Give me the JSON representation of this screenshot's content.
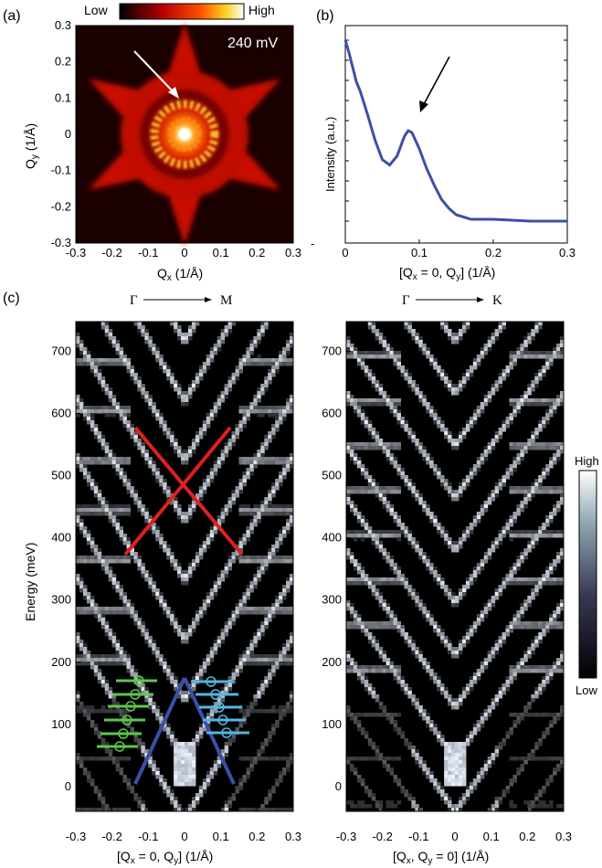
{
  "panel_a": {
    "label": "(a)",
    "colorbar_low": "Low",
    "colorbar_high": "High",
    "bias": "240 mV",
    "xlabel": "Qx (1/Å)",
    "ylabel": "Qy (1/Å)",
    "xticks": [
      "-0.3",
      "-0.2",
      "-0.1",
      "0",
      "0.1",
      "0.2",
      "0.3"
    ],
    "yticks": [
      "0.3",
      "0.2",
      "0.1",
      "0",
      "-0.1",
      "-0.2",
      "-0.3"
    ]
  },
  "panel_b": {
    "label": "(b)",
    "xlabel": "[Qx = 0, Qy] (1/Å)",
    "ylabel": "Intensity (a.u.)",
    "xticks": [
      "0",
      "0.1",
      "0.2",
      "0.3"
    ]
  },
  "panel_c": {
    "label": "(c)",
    "left_direction": {
      "from": "Γ",
      "to": "M"
    },
    "right_direction": {
      "from": "Γ",
      "to": "K"
    },
    "ylabel": "Energy (meV)",
    "yticks": [
      "700",
      "600",
      "500",
      "400",
      "300",
      "200",
      "100",
      "0"
    ],
    "xticks": [
      "-0.3",
      "-0.2",
      "-0.1",
      "0",
      "0.1",
      "0.2",
      "0.3"
    ],
    "left_xlabel": "[Qx = 0, Qy] (1/Å)",
    "right_xlabel": "[Qx, Qy = 0] (1/Å)",
    "colorbar_high": "High",
    "colorbar_low": "Low"
  },
  "chart_data": [
    {
      "type": "heatmap",
      "panel": "(a)",
      "xlabel": "Qx (1/Å)",
      "ylabel": "Qy (1/Å)",
      "xlim": [
        -0.3,
        0.3
      ],
      "ylim": [
        -0.3,
        0.3
      ],
      "annotation": "240 mV",
      "colorbar": {
        "low": "Low",
        "high": "High"
      }
    },
    {
      "type": "line",
      "panel": "(b)",
      "xlabel": "[Qx = 0, Qy] (1/Å)",
      "ylabel": "Intensity (a.u.)",
      "xlim": [
        0,
        0.3
      ],
      "x": [
        0,
        0.005,
        0.01,
        0.015,
        0.02,
        0.03,
        0.04,
        0.05,
        0.06,
        0.07,
        0.08,
        0.085,
        0.09,
        0.1,
        0.11,
        0.12,
        0.13,
        0.14,
        0.15,
        0.17,
        0.2,
        0.25,
        0.3
      ],
      "y": [
        1.0,
        0.93,
        0.85,
        0.77,
        0.72,
        0.59,
        0.45,
        0.34,
        0.31,
        0.36,
        0.47,
        0.5,
        0.49,
        0.4,
        0.29,
        0.2,
        0.12,
        0.07,
        0.035,
        0.01,
        0.01,
        0.0,
        0.0
      ]
    },
    {
      "type": "heatmap",
      "panel": "(c) left",
      "xlabel": "[Qx = 0, Qy] (1/Å)",
      "ylabel": "Energy (meV)",
      "xlim": [
        -0.3,
        0.3
      ],
      "ylim": [
        -50,
        700
      ]
    },
    {
      "type": "heatmap",
      "panel": "(c) right",
      "xlabel": "[Qx, Qy = 0] (1/Å)",
      "xlim": [
        -0.3,
        0.3
      ],
      "ylim": [
        -50,
        700
      ]
    }
  ]
}
